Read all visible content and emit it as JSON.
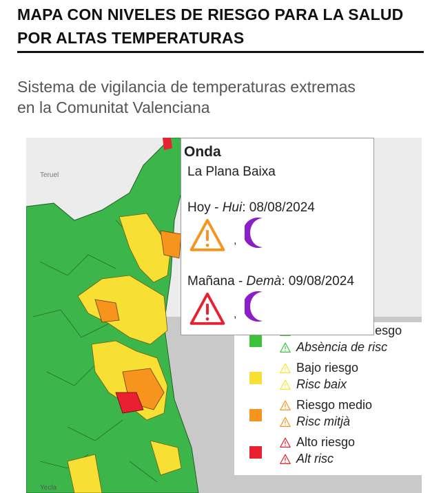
{
  "header": {
    "title_lines": [
      "MAPA CON NIVELES DE RIESGO PARA LA SALUD",
      "POR ALTAS TEMPERATURAS"
    ],
    "subtitle_lines": [
      "Sistema de vigilancia de temperaturas extremas",
      "en la Comunitat Valenciana"
    ]
  },
  "map": {
    "place_labels": [
      "Teruel",
      "Yecla"
    ]
  },
  "tooltip": {
    "municipality": "Onda",
    "comarca": "La Plana Baixa",
    "days": [
      {
        "label_es": "Hoy - ",
        "label_va": "Hui",
        "date": ": 08/08/2024"
      },
      {
        "label_es": "Mañana - ",
        "label_va": "Demà",
        "date": ": 09/08/2024"
      }
    ],
    "separator": ","
  },
  "legend": [
    {
      "es": "Ausencia de riesgo",
      "va": "Absència de risc",
      "color": "#3cc13b"
    },
    {
      "es": "Bajo riesgo",
      "va": "Risc baix",
      "color": "#f7e033"
    },
    {
      "es": "Riesgo medio",
      "va": "Risc mitjà",
      "color": "#f7941d"
    },
    {
      "es": "Alto riesgo",
      "va": "Alt risc",
      "color": "#e8202f"
    }
  ]
}
